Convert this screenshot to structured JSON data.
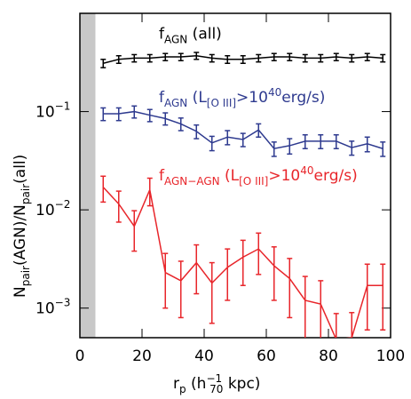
{
  "chart_data": {
    "type": "line",
    "xlabel": [
      {
        "text": "r",
        "style": "normal"
      },
      {
        "text": "p",
        "style": "sub"
      },
      {
        "text": " (h",
        "style": "normal"
      },
      {
        "text": "−1",
        "style": "sup"
      },
      {
        "text": "70",
        "style": "subafter"
      },
      {
        "text": " kpc)",
        "style": "normal"
      }
    ],
    "ylabel": [
      {
        "text": "N",
        "style": "normal"
      },
      {
        "text": "pair",
        "style": "sub"
      },
      {
        "text": "(AGN)/N",
        "style": "normal"
      },
      {
        "text": "pair",
        "style": "sub"
      },
      {
        "text": "(all)",
        "style": "normal"
      }
    ],
    "xlim": [
      0,
      100
    ],
    "xticks": [
      0,
      20,
      40,
      60,
      80,
      100
    ],
    "ylim": [
      0.0005,
      1
    ],
    "log_y": true,
    "yticks": [
      {
        "value": 0.1,
        "label": "10",
        "sup": "−1"
      },
      {
        "value": 0.01,
        "label": "10",
        "sup": "−2"
      },
      {
        "value": 0.001,
        "label": "10",
        "sup": "−3"
      }
    ],
    "shaded_x": [
      0,
      5
    ],
    "shade_color": "#c8c8c8",
    "x": [
      7.5,
      12.5,
      17.5,
      22.5,
      27.5,
      32.5,
      37.5,
      42.5,
      47.5,
      52.5,
      57.5,
      62.5,
      67.5,
      72.5,
      77.5,
      82.5,
      87.5,
      92.5,
      97.5
    ],
    "series": [
      {
        "name": [
          {
            "text": "f",
            "style": "normal"
          },
          {
            "text": "AGN",
            "style": "sub"
          },
          {
            "text": " (all)",
            "style": "normal"
          }
        ],
        "label_at": [
          22,
          0.55
        ],
        "color": "#000000",
        "values": [
          0.31,
          0.34,
          0.35,
          0.35,
          0.36,
          0.36,
          0.37,
          0.35,
          0.34,
          0.34,
          0.35,
          0.36,
          0.36,
          0.35,
          0.35,
          0.36,
          0.35,
          0.36,
          0.35
        ],
        "errors": [
          0.03,
          0.03,
          0.03,
          0.03,
          0.03,
          0.03,
          0.03,
          0.03,
          0.03,
          0.03,
          0.03,
          0.03,
          0.03,
          0.03,
          0.03,
          0.03,
          0.03,
          0.03,
          0.03
        ]
      },
      {
        "name": [
          {
            "text": "f",
            "style": "normal"
          },
          {
            "text": "AGN",
            "style": "sub"
          },
          {
            "text": " (L",
            "style": "normal"
          },
          {
            "text": "[O III]",
            "style": "sub"
          },
          {
            "text": ">10",
            "style": "normal"
          },
          {
            "text": "40",
            "style": "sup"
          },
          {
            "text": "erg/s)",
            "style": "normal"
          }
        ],
        "label_at": [
          22,
          0.125
        ],
        "color": "#2e3a8f",
        "values": [
          0.095,
          0.095,
          0.1,
          0.092,
          0.085,
          0.075,
          0.063,
          0.048,
          0.055,
          0.052,
          0.065,
          0.042,
          0.045,
          0.05,
          0.05,
          0.05,
          0.043,
          0.047,
          0.042
        ],
        "errors": [
          0.014,
          0.014,
          0.014,
          0.013,
          0.012,
          0.011,
          0.01,
          0.008,
          0.009,
          0.008,
          0.01,
          0.007,
          0.008,
          0.008,
          0.008,
          0.008,
          0.007,
          0.008,
          0.007
        ]
      },
      {
        "name": [
          {
            "text": "f",
            "style": "normal"
          },
          {
            "text": "AGN−AGN",
            "style": "sub"
          },
          {
            "text": " (L",
            "style": "normal"
          },
          {
            "text": "[O III]",
            "style": "sub"
          },
          {
            "text": ">10",
            "style": "normal"
          },
          {
            "text": "40",
            "style": "sup"
          },
          {
            "text": "erg/s)",
            "style": "normal"
          }
        ],
        "label_at": [
          22,
          0.02
        ],
        "color": "#e8262b",
        "values": [
          0.017,
          0.0115,
          0.0068,
          0.016,
          0.0023,
          0.0019,
          0.0029,
          0.0018,
          0.0026,
          0.0033,
          0.004,
          0.0027,
          0.002,
          0.0012,
          0.0011,
          0.00048,
          0.0005,
          0.0017,
          0.0017
        ],
        "errors": [
          0.005,
          0.004,
          0.003,
          0.005,
          0.0013,
          0.0011,
          0.0015,
          0.0011,
          0.0014,
          0.0016,
          0.0018,
          0.0015,
          0.0012,
          0.0009,
          0.0008,
          0.0004,
          0.0004,
          0.0011,
          0.0011
        ]
      }
    ]
  }
}
